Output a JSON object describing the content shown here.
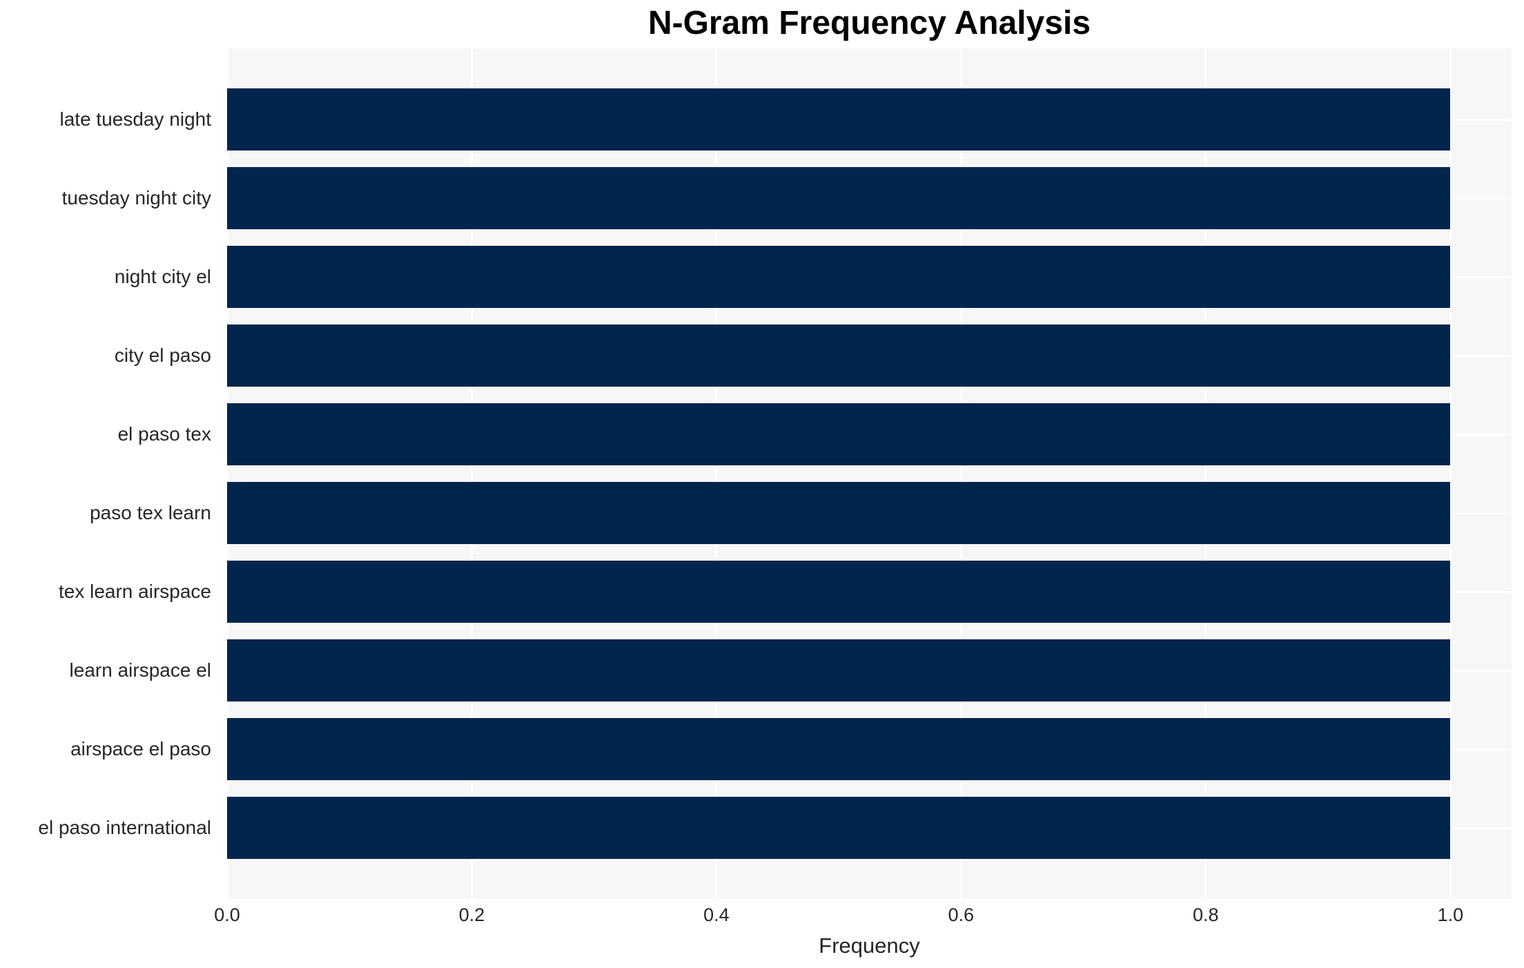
{
  "chart_data": {
    "type": "bar",
    "orientation": "horizontal",
    "title": "N-Gram Frequency Analysis",
    "xlabel": "Frequency",
    "ylabel": "",
    "categories": [
      "late tuesday night",
      "tuesday night city",
      "night city el",
      "city el paso",
      "el paso tex",
      "paso tex learn",
      "tex learn airspace",
      "learn airspace el",
      "airspace el paso",
      "el paso international"
    ],
    "values": [
      1.0,
      1.0,
      1.0,
      1.0,
      1.0,
      1.0,
      1.0,
      1.0,
      1.0,
      1.0
    ],
    "xlim": [
      0,
      1.05
    ],
    "xtick_labels": [
      "0.0",
      "0.2",
      "0.4",
      "0.6",
      "0.8",
      "1.0"
    ],
    "grid": true,
    "legend_position": "none"
  },
  "colors": {
    "bar": "#02254d",
    "plot_background": "#f7f7f7",
    "grid": "#ffffff",
    "text": "#262626",
    "title": "#000000"
  }
}
